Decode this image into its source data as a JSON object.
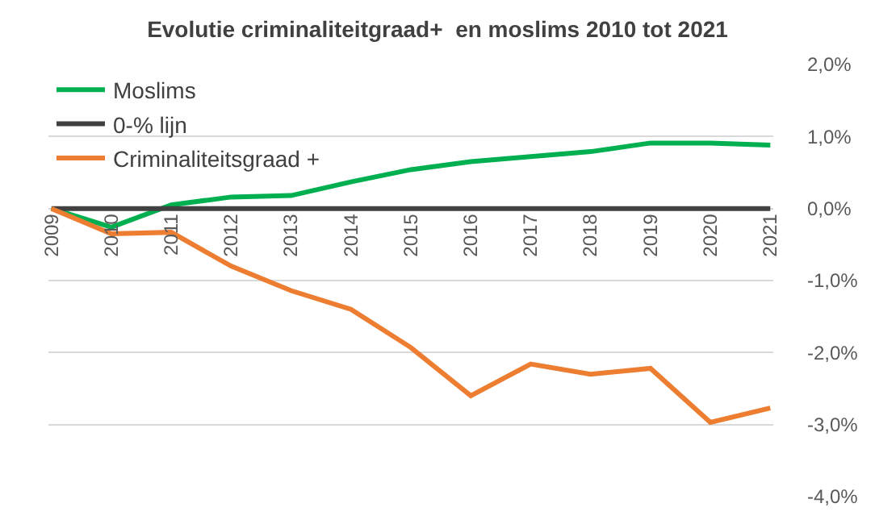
{
  "chart_data": {
    "type": "line",
    "title": "Evolutie criminaliteitgraad+  en moslims 2010 tot 2021",
    "categories": [
      "2009",
      "2010",
      "2011",
      "2012",
      "2013",
      "2014",
      "2015",
      "2016",
      "2017",
      "2018",
      "2019",
      "2020",
      "2021"
    ],
    "series": [
      {
        "name": "Moslims",
        "color": "#00b050",
        "values": [
          0,
          -0.26,
          0.05,
          0.16,
          0.18,
          0.37,
          0.54,
          0.65,
          0.72,
          0.79,
          0.91,
          0.91,
          0.88
        ]
      },
      {
        "name": "0-% lijn",
        "color": "#404040",
        "values": [
          0,
          0,
          0,
          0,
          0,
          0,
          0,
          0,
          0,
          0,
          0,
          0,
          0
        ]
      },
      {
        "name": "Criminaliteitsgraad +",
        "color": "#ed7d31",
        "values": [
          0,
          -0.35,
          -0.33,
          -0.8,
          -1.14,
          -1.4,
          -1.93,
          -2.6,
          -2.16,
          -2.3,
          -2.22,
          -2.97,
          -2.77
        ]
      }
    ],
    "ylim": [
      -4,
      2
    ],
    "yticks": [
      {
        "value": -4,
        "label": "-4,0%"
      },
      {
        "value": -3,
        "label": "-3,0%"
      },
      {
        "value": -2,
        "label": "-2,0%"
      },
      {
        "value": -1,
        "label": "-1,0%"
      },
      {
        "value": 0,
        "label": "0,0%"
      },
      {
        "value": 1,
        "label": "1,0%"
      },
      {
        "value": 2,
        "label": "2,0%"
      }
    ],
    "grid": "y",
    "legend": "top left",
    "marker": "none",
    "line_style": "solid"
  }
}
